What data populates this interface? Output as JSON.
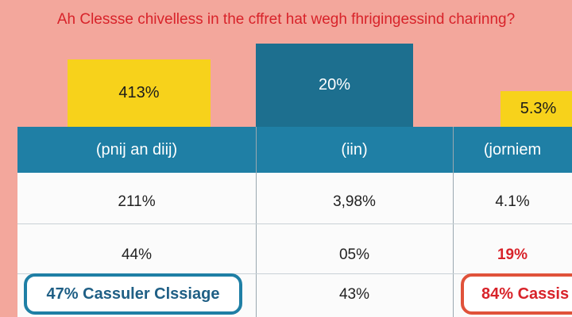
{
  "title": "Ah Clessse chivelless in the cffret hat wegh fhrigingessind charinng?",
  "badges": [
    "413%",
    "20%",
    "5.3%"
  ],
  "table": {
    "columns": [
      "(pnij an diij)",
      "(iin)",
      "(jorniem"
    ],
    "rows": [
      [
        "211%",
        "3,98%",
        "4.1%"
      ],
      [
        "44%",
        "05%",
        "19%"
      ]
    ]
  },
  "footer_center": "43%",
  "callouts": [
    "47% Cassuler Clssiage",
    "84% Cassis"
  ]
}
